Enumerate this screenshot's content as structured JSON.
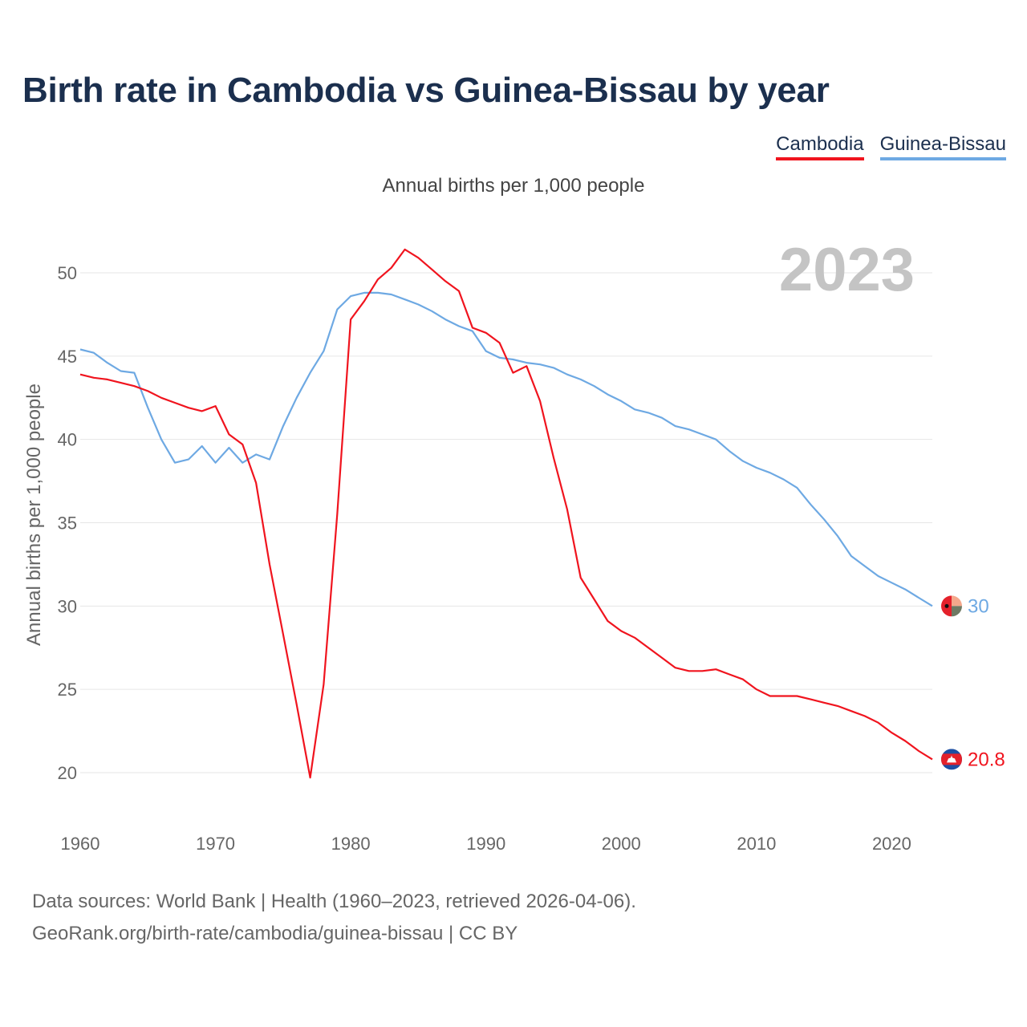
{
  "title": "Birth rate in Cambodia vs Guinea-Bissau by year",
  "legend": [
    {
      "label": "Cambodia",
      "color": "#f0141e"
    },
    {
      "label": "Guinea-Bissau",
      "color": "#6ea9e3"
    }
  ],
  "subtitle": "Annual births per 1,000 people",
  "footer": {
    "line1": "Data sources: World Bank | Health (1960–2023, retrieved 2026-04-06).",
    "line2": "GeoRank.org/birth-rate/cambodia/guinea-bissau | CC BY"
  },
  "chart_data": {
    "type": "line",
    "title": "Birth rate in Cambodia vs Guinea-Bissau by year",
    "ylabel": "Annual births per 1,000 people",
    "xlabel": "",
    "year_label": "2023",
    "xlim": [
      1960,
      2023
    ],
    "ylim": [
      20,
      52
    ],
    "x_ticks": [
      1960,
      1970,
      1980,
      1990,
      2000,
      2010,
      2020
    ],
    "y_ticks": [
      20,
      25,
      30,
      35,
      40,
      45,
      50
    ],
    "grid": true,
    "x": [
      1960,
      1961,
      1962,
      1963,
      1964,
      1965,
      1966,
      1967,
      1968,
      1969,
      1970,
      1971,
      1972,
      1973,
      1974,
      1975,
      1976,
      1977,
      1978,
      1979,
      1980,
      1981,
      1982,
      1983,
      1984,
      1985,
      1986,
      1987,
      1988,
      1989,
      1990,
      1991,
      1992,
      1993,
      1994,
      1995,
      1996,
      1997,
      1998,
      1999,
      2000,
      2001,
      2002,
      2003,
      2004,
      2005,
      2006,
      2007,
      2008,
      2009,
      2010,
      2011,
      2012,
      2013,
      2014,
      2015,
      2016,
      2017,
      2018,
      2019,
      2020,
      2021,
      2022,
      2023
    ],
    "series": [
      {
        "name": "Cambodia",
        "color": "#f0141e",
        "end_label": "20.8",
        "values": [
          43.9,
          43.7,
          43.6,
          43.4,
          43.2,
          42.9,
          42.5,
          42.2,
          41.9,
          41.7,
          42.0,
          40.3,
          39.7,
          37.4,
          32.5,
          28.3,
          24.1,
          19.7,
          25.3,
          35.5,
          47.2,
          48.3,
          49.6,
          50.3,
          51.4,
          50.9,
          50.2,
          49.5,
          48.9,
          46.7,
          46.4,
          45.8,
          44.0,
          44.4,
          42.3,
          38.9,
          35.8,
          31.7,
          30.4,
          29.1,
          28.5,
          28.1,
          27.5,
          26.9,
          26.3,
          26.1,
          26.1,
          26.2,
          25.9,
          25.6,
          25.0,
          24.6,
          24.6,
          24.6,
          24.4,
          24.2,
          24.0,
          23.7,
          23.4,
          23.0,
          22.4,
          21.9,
          21.3,
          20.8
        ]
      },
      {
        "name": "Guinea-Bissau",
        "color": "#6ea9e3",
        "end_label": "30",
        "values": [
          45.4,
          45.2,
          44.6,
          44.1,
          44.0,
          41.9,
          40.0,
          38.6,
          38.8,
          39.6,
          38.6,
          39.5,
          38.6,
          39.1,
          38.8,
          40.8,
          42.5,
          44.0,
          45.3,
          47.8,
          48.6,
          48.8,
          48.8,
          48.7,
          48.4,
          48.1,
          47.7,
          47.2,
          46.8,
          46.5,
          45.3,
          44.9,
          44.8,
          44.6,
          44.5,
          44.3,
          43.9,
          43.6,
          43.2,
          42.7,
          42.3,
          41.8,
          41.6,
          41.3,
          40.8,
          40.6,
          40.3,
          40.0,
          39.3,
          38.7,
          38.3,
          38.0,
          37.6,
          37.1,
          36.1,
          35.2,
          34.2,
          33.0,
          32.4,
          31.8,
          31.4,
          31.0,
          30.5,
          30.0
        ]
      }
    ]
  }
}
